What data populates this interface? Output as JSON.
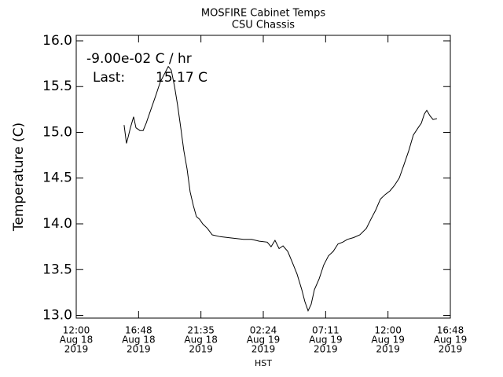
{
  "chart_data": {
    "type": "line",
    "title": [
      "MOSFIRE Cabinet Temps",
      "CSU Chassis"
    ],
    "xlabel": "HST",
    "ylabel": "Temperature (C)",
    "annotations": [
      "-9.00e-02 C / hr",
      "Last:",
      "15.17 C"
    ],
    "xlim": [
      "2019-08-18T12:00",
      "2019-08-19T16:48"
    ],
    "xticks": [
      {
        "value": "2019-08-18T12:00",
        "label": [
          "12:00",
          "Aug 18",
          "2019"
        ]
      },
      {
        "value": "2019-08-18T16:48",
        "label": [
          "16:48",
          "Aug 18",
          "2019"
        ]
      },
      {
        "value": "2019-08-18T21:35:59",
        "label": [
          "21:35",
          "Aug 18",
          "2019"
        ]
      },
      {
        "value": "2019-08-19T02:24",
        "label": [
          "02:24",
          "Aug 19",
          "2019"
        ]
      },
      {
        "value": "2019-08-19T07:11:59",
        "label": [
          "07:11",
          "Aug 19",
          "2019"
        ]
      },
      {
        "value": "2019-08-19T12:00",
        "label": [
          "12:00",
          "Aug 19",
          "2019"
        ]
      },
      {
        "value": "2019-08-19T16:48",
        "label": [
          "16:48",
          "Aug 19",
          "2019"
        ]
      }
    ],
    "ylim": [
      12.97,
      16.06
    ],
    "yticks": [
      {
        "value": 13,
        "label": "13.0"
      },
      {
        "value": 13.5,
        "label": "13.5"
      },
      {
        "value": 14,
        "label": "14.0"
      },
      {
        "value": 14.5,
        "label": "14.5"
      },
      {
        "value": 15,
        "label": "15.0"
      },
      {
        "value": 15.5,
        "label": "15.5"
      },
      {
        "value": 16,
        "label": "16.0"
      }
    ],
    "x": [
      "2019-08-18T15:41",
      "2019-08-18T15:52",
      "2019-08-18T16:00",
      "2019-08-18T16:10",
      "2019-08-18T16:25",
      "2019-08-18T16:36",
      "2019-08-18T16:54",
      "2019-08-18T17:09",
      "2019-08-18T17:23",
      "2019-08-18T17:45",
      "2019-08-18T18:07",
      "2019-08-18T18:28",
      "2019-08-18T18:50",
      "2019-08-18T19:05",
      "2019-08-18T19:19",
      "2019-08-18T19:34",
      "2019-08-18T19:48",
      "2019-08-18T20:03",
      "2019-08-18T20:17",
      "2019-08-18T20:32",
      "2019-08-18T20:46",
      "2019-08-18T21:01",
      "2019-08-18T21:15",
      "2019-08-18T21:30",
      "2019-08-18T21:44",
      "2019-08-18T22:06",
      "2019-08-18T22:28",
      "2019-08-18T23:04",
      "2019-08-18T23:41",
      "2019-08-19T00:17",
      "2019-08-19T00:53",
      "2019-08-19T01:30",
      "2019-08-19T02:06",
      "2019-08-19T02:42",
      "2019-08-19T03:00",
      "2019-08-19T03:18",
      "2019-08-19T03:37",
      "2019-08-19T03:55",
      "2019-08-19T04:17",
      "2019-08-19T04:38",
      "2019-08-19T05:00",
      "2019-08-19T05:22",
      "2019-08-19T05:36",
      "2019-08-19T05:51",
      "2019-08-19T06:05",
      "2019-08-19T06:20",
      "2019-08-19T06:42",
      "2019-08-19T07:03",
      "2019-08-19T07:25",
      "2019-08-19T07:47",
      "2019-08-19T08:09",
      "2019-08-19T08:31",
      "2019-08-19T08:52",
      "2019-08-19T09:21",
      "2019-08-19T09:50",
      "2019-08-19T10:20",
      "2019-08-19T10:41",
      "2019-08-19T11:03",
      "2019-08-19T11:25",
      "2019-08-19T11:47",
      "2019-08-19T12:09",
      "2019-08-19T12:30",
      "2019-08-19T12:52",
      "2019-08-19T13:14",
      "2019-08-19T13:36",
      "2019-08-19T13:57",
      "2019-08-19T14:19",
      "2019-08-19T14:34",
      "2019-08-19T14:48",
      "2019-08-19T14:59",
      "2019-08-19T15:14",
      "2019-08-19T15:28",
      "2019-08-19T15:46"
    ],
    "series": [
      {
        "color": "#000000",
        "values": [
          15.08,
          14.88,
          14.95,
          15.05,
          15.17,
          15.05,
          15.02,
          15.02,
          15.1,
          15.25,
          15.4,
          15.55,
          15.65,
          15.72,
          15.68,
          15.5,
          15.3,
          15.05,
          14.8,
          14.6,
          14.35,
          14.2,
          14.08,
          14.05,
          14.0,
          13.95,
          13.88,
          13.86,
          13.85,
          13.84,
          13.83,
          13.83,
          13.81,
          13.8,
          13.75,
          13.82,
          13.73,
          13.76,
          13.7,
          13.58,
          13.45,
          13.28,
          13.15,
          13.05,
          13.12,
          13.28,
          13.4,
          13.55,
          13.65,
          13.7,
          13.78,
          13.8,
          13.83,
          13.85,
          13.88,
          13.95,
          14.05,
          14.15,
          14.27,
          14.32,
          14.36,
          14.42,
          14.5,
          14.65,
          14.8,
          14.97,
          15.05,
          15.1,
          15.2,
          15.24,
          15.18,
          15.14,
          15.15
        ]
      }
    ]
  }
}
